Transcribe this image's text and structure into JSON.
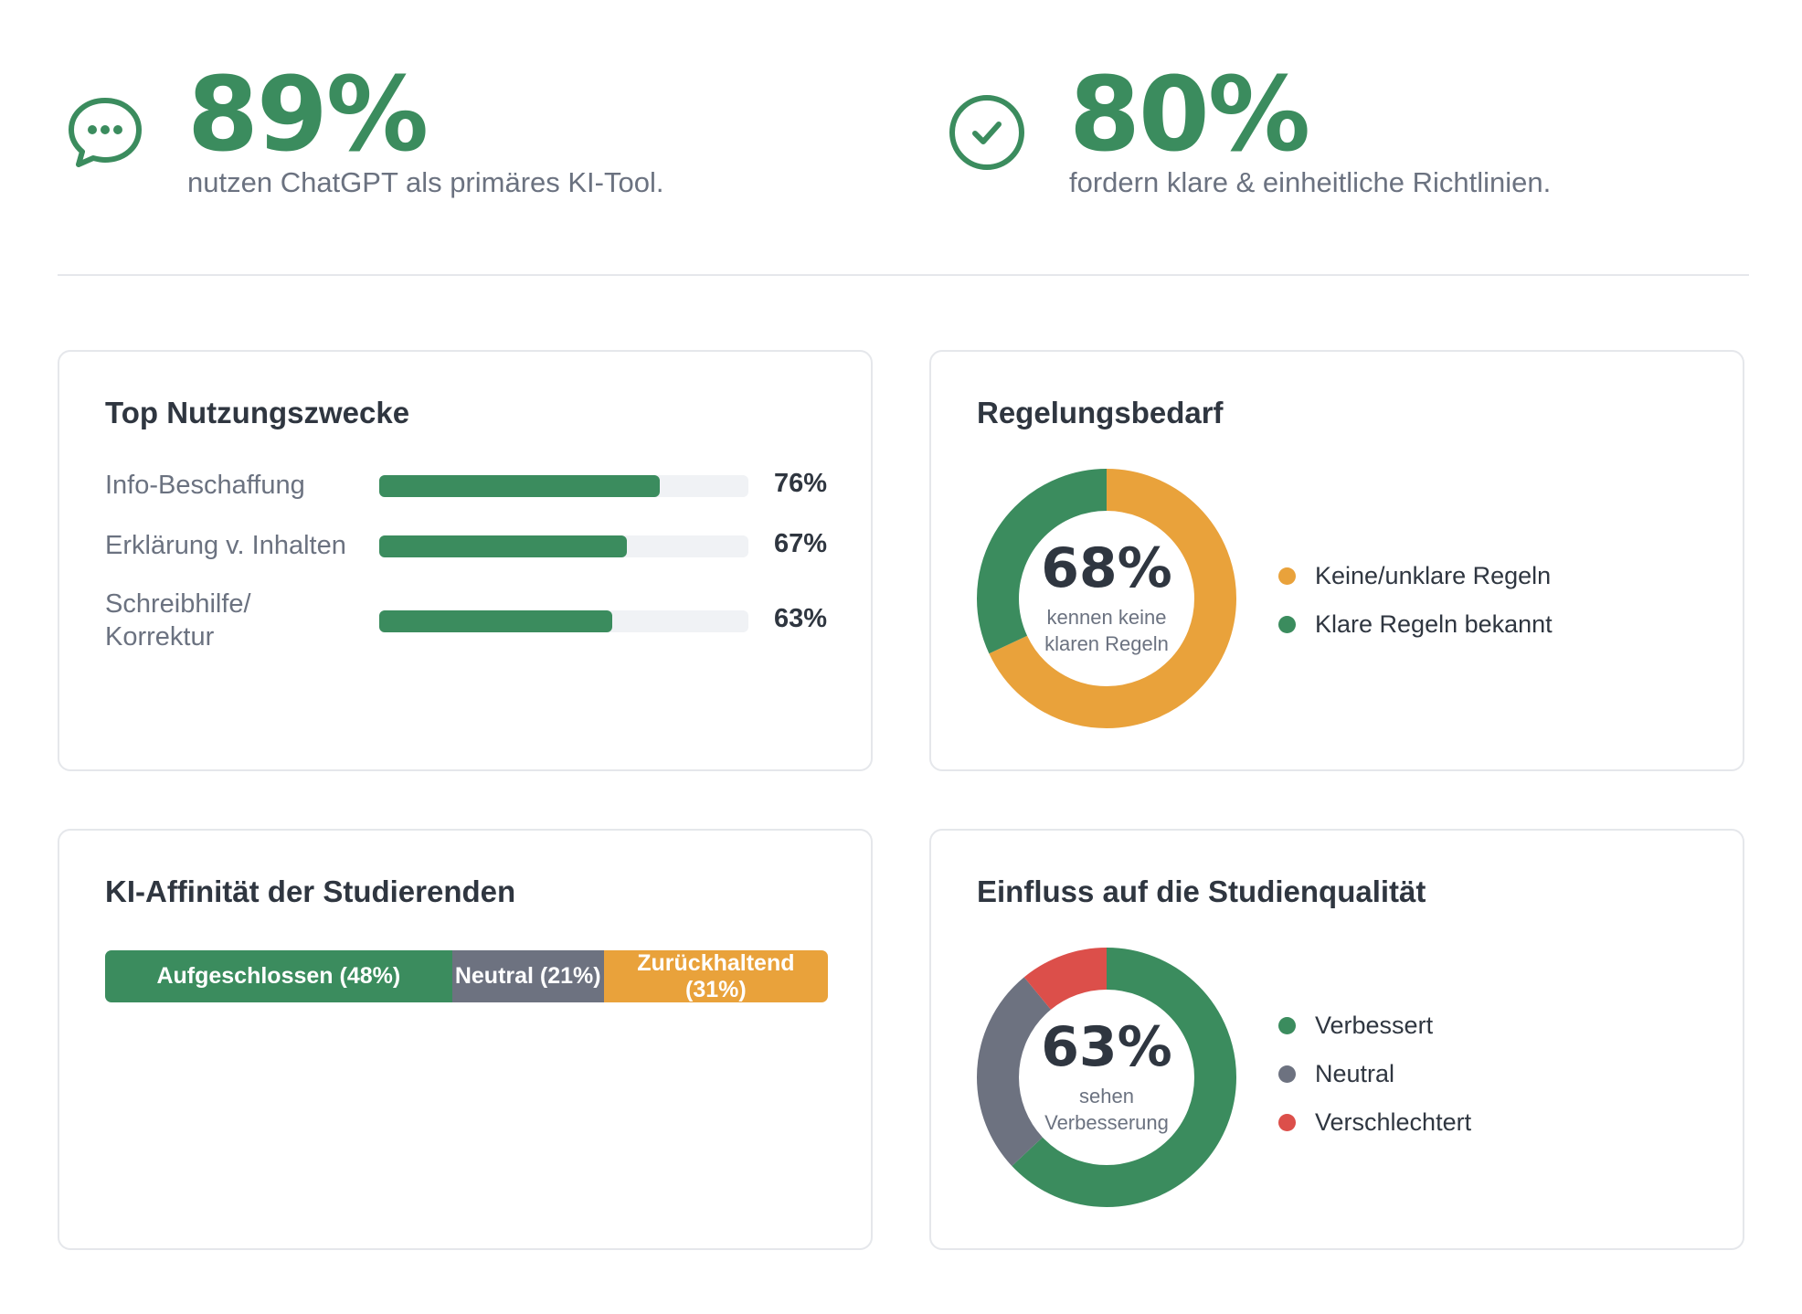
{
  "stats": [
    {
      "value": "89%",
      "caption": "nutzen ChatGPT als primäres KI-Tool.",
      "icon": "chat-bubble-icon"
    },
    {
      "value": "80%",
      "caption": "fordern klare & einheitliche Richtlinien.",
      "icon": "check-circle-icon"
    }
  ],
  "colors": {
    "green": "#3b8c5e",
    "orange": "#e9a23b",
    "gray": "#6d7280",
    "red": "#dc4f4a",
    "track": "#f0f2f5"
  },
  "usage": {
    "title": "Top Nutzungszwecke",
    "items": [
      {
        "label": "Info-Beschaffung",
        "pct_label": "76%",
        "value": 76
      },
      {
        "label": "Erklärung v. Inhalten",
        "pct_label": "67%",
        "value": 67
      },
      {
        "label": "Schreibhilfe/\nKorrektur",
        "pct_label": "63%",
        "value": 63
      }
    ]
  },
  "regulation": {
    "title": "Regelungsbedarf",
    "center_value": "68%",
    "center_caption": "kennen keine klaren Regeln",
    "legend": [
      "Keine/unklare Regeln",
      "Klare Regeln bekannt"
    ]
  },
  "affinity": {
    "title": "KI-Affinität der Studierenden",
    "segments": [
      {
        "label": "Aufgeschlossen (48%)",
        "value": 48
      },
      {
        "label": "Neutral (21%)",
        "value": 21
      },
      {
        "label": "Zurückhaltend (31%)",
        "value": 31
      }
    ]
  },
  "quality": {
    "title": "Einfluss auf die Studienqualität",
    "center_value": "63%",
    "center_caption": "sehen Verbesserung",
    "legend": [
      "Verbessert",
      "Neutral",
      "Verschlechtert"
    ]
  },
  "chart_data": [
    {
      "type": "bar",
      "title": "Top Nutzungszwecke",
      "categories": [
        "Info-Beschaffung",
        "Erklärung v. Inhalten",
        "Schreibhilfe/Korrektur"
      ],
      "values": [
        76,
        67,
        63
      ],
      "unit": "%",
      "xlim": [
        0,
        100
      ]
    },
    {
      "type": "pie",
      "title": "Regelungsbedarf",
      "categories": [
        "Keine/unklare Regeln",
        "Klare Regeln bekannt"
      ],
      "values": [
        68,
        32
      ],
      "colors": [
        "#e9a23b",
        "#3b8c5e"
      ]
    },
    {
      "type": "bar",
      "title": "KI-Affinität der Studierenden",
      "categories": [
        "Aufgeschlossen",
        "Neutral",
        "Zurückhaltend"
      ],
      "values": [
        48,
        21,
        31
      ],
      "stacked": true,
      "colors": [
        "#3b8c5e",
        "#6d7280",
        "#e9a23b"
      ]
    },
    {
      "type": "pie",
      "title": "Einfluss auf die Studienqualität",
      "categories": [
        "Verbessert",
        "Neutral",
        "Verschlechtert"
      ],
      "values": [
        63,
        26,
        11
      ],
      "colors": [
        "#3b8c5e",
        "#6d7280",
        "#dc4f4a"
      ]
    }
  ]
}
